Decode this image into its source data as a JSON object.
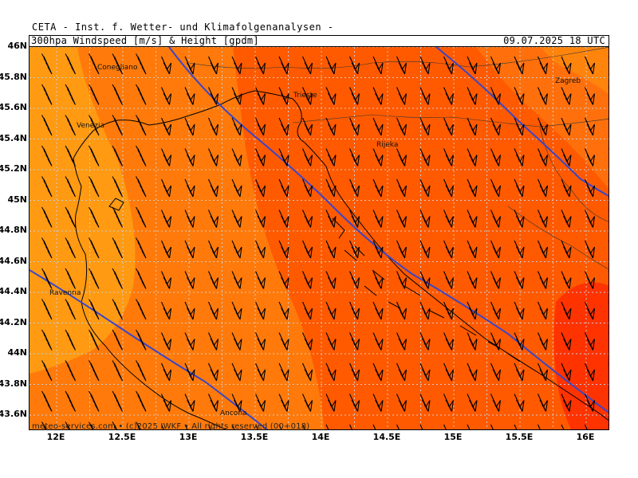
{
  "header": {
    "title": "CETA - Inst. f. Wetter- und Klimafolgenanalysen -",
    "product": "300hpa Windspeed [m/s] & Height [gpdm]",
    "valid_time": "09.07.2025 18 UTC"
  },
  "footer": "meteo-services.com • (c)2025 IWKF • All rights reserved (00+018)",
  "axes": {
    "lat_labels": [
      "46N",
      "45.8N",
      "45.6N",
      "45.4N",
      "45.2N",
      "45N",
      "44.8N",
      "44.6N",
      "44.4N",
      "44.2N",
      "44N",
      "43.8N",
      "43.6N"
    ],
    "lon_labels": [
      "12E",
      "12.5E",
      "13E",
      "13.5E",
      "14E",
      "14.5E",
      "15E",
      "15.5E",
      "16E"
    ]
  },
  "cities": [
    {
      "name": "Conegliano"
    },
    {
      "name": "Venezia"
    },
    {
      "name": "Trieste"
    },
    {
      "name": "Rijeka"
    },
    {
      "name": "Zagreb"
    },
    {
      "name": "Ravenna"
    },
    {
      "name": "Ancona"
    }
  ],
  "colors": {
    "light_orange": "#ff9a12",
    "orange": "#ff7a0a",
    "red_orange": "#ff5600",
    "red": "#ff3000",
    "yellow": "#ffb000",
    "height_contour": "#3a46c8",
    "grid": "#cccccc"
  },
  "map": {
    "lat_range": [
      43.6,
      46.0
    ],
    "lon_range": [
      11.9,
      16.1
    ],
    "height_contours": 3,
    "wind_barb_speed_symbol": "barb-icon"
  }
}
